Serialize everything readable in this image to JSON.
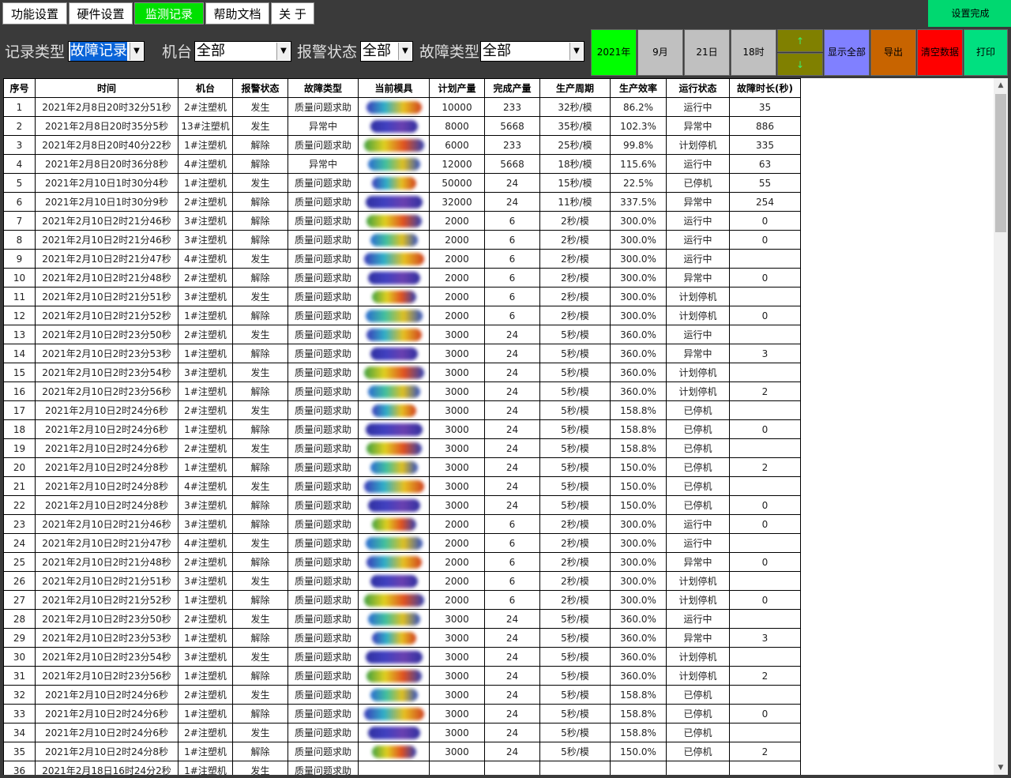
{
  "tabs": [
    {
      "label": "功能设置",
      "active": false
    },
    {
      "label": "硬件设置",
      "active": false
    },
    {
      "label": "监测记录",
      "active": true
    },
    {
      "label": "帮助文档",
      "active": false
    },
    {
      "label": "关 于",
      "active": false
    }
  ],
  "setdone_label": "设置完成",
  "filters": {
    "record_type": {
      "label": "记录类型",
      "value": "故障记录"
    },
    "machine": {
      "label": "机台",
      "value": "全部"
    },
    "alarm_state": {
      "label": "报警状态",
      "value": "全部"
    },
    "fault_type": {
      "label": "故障类型",
      "value": "全部"
    }
  },
  "date_buttons": {
    "year": "2021年",
    "month": "9月",
    "day": "21日",
    "hour": "18时"
  },
  "updown": {
    "up": "↑",
    "down": "↓"
  },
  "actions": {
    "show_all": "显示全部",
    "export": "导出",
    "clear": "清空数据",
    "print": "打印"
  },
  "colors": {
    "year_bg": "#00ff00",
    "date_bg": "#c0c0c0",
    "updown_bg": "#808000",
    "show_all_bg": "#8080ff",
    "export_bg": "#c86400",
    "clear_bg": "#ff0000",
    "print_bg": "#00e080",
    "active_tab": "#00e000"
  },
  "table": {
    "headers": [
      "序号",
      "时间",
      "机台",
      "报警状态",
      "故障类型",
      "当前模具",
      "计划产量",
      "完成产量",
      "生产周期",
      "生产效率",
      "运行状态",
      "故障时长(秒)"
    ],
    "rows": [
      [
        "1",
        "2021年2月8日20时32分51秒",
        "2#注塑机",
        "发生",
        "质量问题求助",
        "",
        "10000",
        "233",
        "32秒/模",
        "86.2%",
        "运行中",
        "35"
      ],
      [
        "2",
        "2021年2月8日20时35分5秒",
        "13#注塑机",
        "发生",
        "异常中",
        "",
        "8000",
        "5668",
        "35秒/模",
        "102.3%",
        "异常中",
        "886"
      ],
      [
        "3",
        "2021年2月8日20时40分22秒",
        "1#注塑机",
        "解除",
        "质量问题求助",
        "",
        "6000",
        "233",
        "25秒/模",
        "99.8%",
        "计划停机",
        "335"
      ],
      [
        "4",
        "2021年2月8日20时36分8秒",
        "4#注塑机",
        "解除",
        "异常中",
        "",
        "12000",
        "5668",
        "18秒/模",
        "115.6%",
        "运行中",
        "63"
      ],
      [
        "5",
        "2021年2月10日1时30分4秒",
        "1#注塑机",
        "发生",
        "质量问题求助",
        "",
        "50000",
        "24",
        "15秒/模",
        "22.5%",
        "已停机",
        "55"
      ],
      [
        "6",
        "2021年2月10日1时30分9秒",
        "2#注塑机",
        "解除",
        "质量问题求助",
        "",
        "32000",
        "24",
        "11秒/模",
        "337.5%",
        "异常中",
        "254"
      ],
      [
        "7",
        "2021年2月10日2时21分46秒",
        "3#注塑机",
        "解除",
        "质量问题求助",
        "",
        "2000",
        "6",
        "2秒/模",
        "300.0%",
        "运行中",
        "0"
      ],
      [
        "8",
        "2021年2月10日2时21分46秒",
        "3#注塑机",
        "解除",
        "质量问题求助",
        "",
        "2000",
        "6",
        "2秒/模",
        "300.0%",
        "运行中",
        "0"
      ],
      [
        "9",
        "2021年2月10日2时21分47秒",
        "4#注塑机",
        "发生",
        "质量问题求助",
        "",
        "2000",
        "6",
        "2秒/模",
        "300.0%",
        "运行中",
        ""
      ],
      [
        "10",
        "2021年2月10日2时21分48秒",
        "2#注塑机",
        "解除",
        "质量问题求助",
        "",
        "2000",
        "6",
        "2秒/模",
        "300.0%",
        "异常中",
        "0"
      ],
      [
        "11",
        "2021年2月10日2时21分51秒",
        "3#注塑机",
        "发生",
        "质量问题求助",
        "",
        "2000",
        "6",
        "2秒/模",
        "300.0%",
        "计划停机",
        ""
      ],
      [
        "12",
        "2021年2月10日2时21分52秒",
        "1#注塑机",
        "解除",
        "质量问题求助",
        "",
        "2000",
        "6",
        "2秒/模",
        "300.0%",
        "计划停机",
        "0"
      ],
      [
        "13",
        "2021年2月10日2时23分50秒",
        "2#注塑机",
        "发生",
        "质量问题求助",
        "",
        "3000",
        "24",
        "5秒/模",
        "360.0%",
        "运行中",
        ""
      ],
      [
        "14",
        "2021年2月10日2时23分53秒",
        "1#注塑机",
        "解除",
        "质量问题求助",
        "",
        "3000",
        "24",
        "5秒/模",
        "360.0%",
        "异常中",
        "3"
      ],
      [
        "15",
        "2021年2月10日2时23分54秒",
        "3#注塑机",
        "发生",
        "质量问题求助",
        "",
        "3000",
        "24",
        "5秒/模",
        "360.0%",
        "计划停机",
        ""
      ],
      [
        "16",
        "2021年2月10日2时23分56秒",
        "1#注塑机",
        "解除",
        "质量问题求助",
        "",
        "3000",
        "24",
        "5秒/模",
        "360.0%",
        "计划停机",
        "2"
      ],
      [
        "17",
        "2021年2月10日2时24分6秒",
        "2#注塑机",
        "发生",
        "质量问题求助",
        "",
        "3000",
        "24",
        "5秒/模",
        "158.8%",
        "已停机",
        ""
      ],
      [
        "18",
        "2021年2月10日2时24分6秒",
        "1#注塑机",
        "解除",
        "质量问题求助",
        "",
        "3000",
        "24",
        "5秒/模",
        "158.8%",
        "已停机",
        "0"
      ],
      [
        "19",
        "2021年2月10日2时24分6秒",
        "2#注塑机",
        "发生",
        "质量问题求助",
        "",
        "3000",
        "24",
        "5秒/模",
        "158.8%",
        "已停机",
        ""
      ],
      [
        "20",
        "2021年2月10日2时24分8秒",
        "1#注塑机",
        "解除",
        "质量问题求助",
        "",
        "3000",
        "24",
        "5秒/模",
        "150.0%",
        "已停机",
        "2"
      ],
      [
        "21",
        "2021年2月10日2时24分8秒",
        "4#注塑机",
        "发生",
        "质量问题求助",
        "",
        "3000",
        "24",
        "5秒/模",
        "150.0%",
        "已停机",
        ""
      ],
      [
        "22",
        "2021年2月10日2时24分8秒",
        "3#注塑机",
        "解除",
        "质量问题求助",
        "",
        "3000",
        "24",
        "5秒/模",
        "150.0%",
        "已停机",
        "0"
      ],
      [
        "23",
        "2021年2月10日2时21分46秒",
        "3#注塑机",
        "解除",
        "质量问题求助",
        "",
        "2000",
        "6",
        "2秒/模",
        "300.0%",
        "运行中",
        "0"
      ],
      [
        "24",
        "2021年2月10日2时21分47秒",
        "4#注塑机",
        "发生",
        "质量问题求助",
        "",
        "2000",
        "6",
        "2秒/模",
        "300.0%",
        "运行中",
        ""
      ],
      [
        "25",
        "2021年2月10日2时21分48秒",
        "2#注塑机",
        "解除",
        "质量问题求助",
        "",
        "2000",
        "6",
        "2秒/模",
        "300.0%",
        "异常中",
        "0"
      ],
      [
        "26",
        "2021年2月10日2时21分51秒",
        "3#注塑机",
        "发生",
        "质量问题求助",
        "",
        "2000",
        "6",
        "2秒/模",
        "300.0%",
        "计划停机",
        ""
      ],
      [
        "27",
        "2021年2月10日2时21分52秒",
        "1#注塑机",
        "解除",
        "质量问题求助",
        "",
        "2000",
        "6",
        "2秒/模",
        "300.0%",
        "计划停机",
        "0"
      ],
      [
        "28",
        "2021年2月10日2时23分50秒",
        "2#注塑机",
        "发生",
        "质量问题求助",
        "",
        "3000",
        "24",
        "5秒/模",
        "360.0%",
        "运行中",
        ""
      ],
      [
        "29",
        "2021年2月10日2时23分53秒",
        "1#注塑机",
        "解除",
        "质量问题求助",
        "",
        "3000",
        "24",
        "5秒/模",
        "360.0%",
        "异常中",
        "3"
      ],
      [
        "30",
        "2021年2月10日2时23分54秒",
        "3#注塑机",
        "发生",
        "质量问题求助",
        "",
        "3000",
        "24",
        "5秒/模",
        "360.0%",
        "计划停机",
        ""
      ],
      [
        "31",
        "2021年2月10日2时23分56秒",
        "1#注塑机",
        "解除",
        "质量问题求助",
        "",
        "3000",
        "24",
        "5秒/模",
        "360.0%",
        "计划停机",
        "2"
      ],
      [
        "32",
        "2021年2月10日2时24分6秒",
        "2#注塑机",
        "发生",
        "质量问题求助",
        "",
        "3000",
        "24",
        "5秒/模",
        "158.8%",
        "已停机",
        ""
      ],
      [
        "33",
        "2021年2月10日2时24分6秒",
        "1#注塑机",
        "解除",
        "质量问题求助",
        "",
        "3000",
        "24",
        "5秒/模",
        "158.8%",
        "已停机",
        "0"
      ],
      [
        "34",
        "2021年2月10日2时24分6秒",
        "2#注塑机",
        "发生",
        "质量问题求助",
        "",
        "3000",
        "24",
        "5秒/模",
        "158.8%",
        "已停机",
        ""
      ],
      [
        "35",
        "2021年2月10日2时24分8秒",
        "1#注塑机",
        "解除",
        "质量问题求助",
        "",
        "3000",
        "24",
        "5秒/模",
        "150.0%",
        "已停机",
        "2"
      ],
      [
        "36",
        "2021年2月18日16时24分2秒",
        "1#注塑机",
        "发生",
        "质量问题求助",
        "",
        "",
        "",
        "",
        "",
        "",
        ""
      ]
    ]
  },
  "scrollbar": {
    "up_icon": "▲",
    "down_icon": "▼"
  }
}
